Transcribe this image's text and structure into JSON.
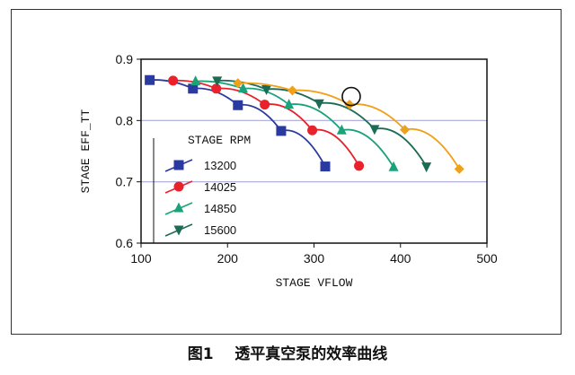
{
  "caption": "图1    透平真空泵的效率曲线",
  "chart_data": {
    "type": "line",
    "xlabel": "STAGE VFLOW",
    "ylabel": "STAGE EFF_TT",
    "xlim": [
      100,
      500
    ],
    "ylim": [
      0.6,
      0.9
    ],
    "xticks": [
      100,
      200,
      300,
      400,
      500
    ],
    "yticks": [
      0.6,
      0.7,
      0.8,
      0.9
    ],
    "ytick_labels": [
      "0.6",
      "0.7",
      "0.8",
      "0.9"
    ],
    "grid": "horizontal",
    "legend": {
      "title": "STAGE RPM",
      "placement": "bottom-left"
    },
    "series": [
      {
        "name": "13200",
        "color": "#2b3aa0",
        "marker": "square",
        "x": [
          110,
          160,
          212,
          262,
          313
        ],
        "y": [
          0.866,
          0.852,
          0.825,
          0.783,
          0.725
        ]
      },
      {
        "name": "14025",
        "color": "#e8212b",
        "marker": "circle",
        "x": [
          137,
          187,
          243,
          298,
          352
        ],
        "y": [
          0.865,
          0.852,
          0.826,
          0.784,
          0.726
        ]
      },
      {
        "name": "14850",
        "color": "#1aa37a",
        "marker": "triangle-up",
        "x": [
          163,
          218,
          271,
          332,
          392
        ],
        "y": [
          0.864,
          0.852,
          0.826,
          0.784,
          0.724
        ]
      },
      {
        "name": "15600",
        "color": "#1b6b55",
        "marker": "triangle-down",
        "x": [
          188,
          245,
          306,
          370,
          430
        ],
        "y": [
          0.865,
          0.851,
          0.828,
          0.786,
          0.725
        ]
      },
      {
        "name": "",
        "color": "#f0a11a",
        "marker": "diamond",
        "x": [
          212,
          275,
          341,
          405,
          468
        ],
        "y": [
          0.861,
          0.849,
          0.826,
          0.785,
          0.721
        ]
      }
    ],
    "annotations": [
      {
        "type": "circle",
        "x": 341,
        "y": 0.826
      }
    ]
  }
}
